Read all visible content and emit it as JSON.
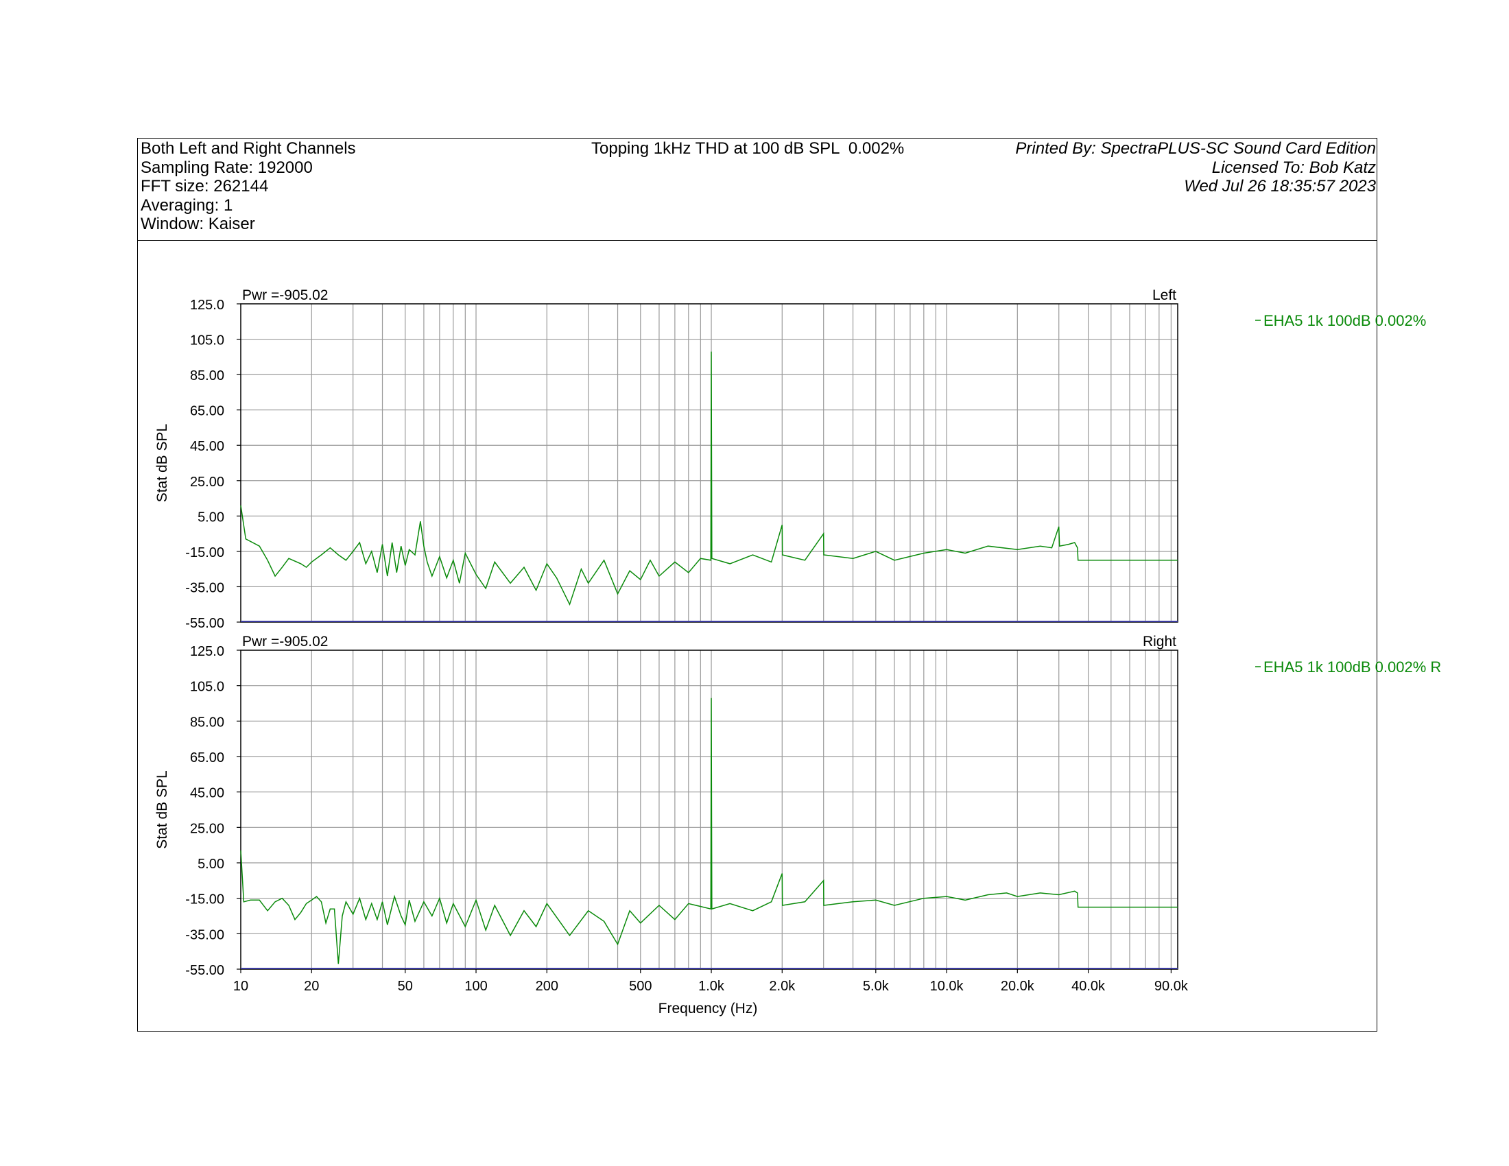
{
  "header": {
    "left_lines": [
      "Both Left and Right Channels",
      "Sampling Rate: 192000",
      "FFT size: 262144",
      "Averaging: 1",
      "Window: Kaiser"
    ],
    "center_title": "Topping 1kHz THD at 100 dB SPL  0.002%",
    "right_lines": [
      "Printed By: SpectraPLUS-SC Sound Card Edition",
      "Licensed To: Bob Katz",
      "Wed Jul 26 18:35:57 2023"
    ]
  },
  "colors": {
    "trace": "#0a8a0a",
    "grid": "#9a9a9a",
    "baseline": "#3a3aa0",
    "axis": "#000000"
  },
  "chart_data": [
    {
      "type": "line",
      "panel": "Left",
      "pwr_label": "Pwr =-905.02",
      "channel_label": "Left",
      "ylabel": "Stat dB SPL",
      "xlabel": "",
      "x_scale": "log",
      "xlim": [
        10,
        96000
      ],
      "ylim": [
        -55,
        125
      ],
      "y_ticks": [
        "125.0",
        "105.0",
        "85.00",
        "65.00",
        "45.00",
        "25.00",
        "5.00",
        "-15.00",
        "-35.00",
        "-55.00"
      ],
      "grid": true,
      "legend": {
        "position": "right",
        "entries": [
          "EHA5 1k 100dB 0.002%"
        ]
      },
      "series": [
        {
          "name": "EHA5 1k 100dB 0.002%",
          "points": [
            [
              10,
              11
            ],
            [
              10.5,
              -8
            ],
            [
              12,
              -12
            ],
            [
              13,
              -20
            ],
            [
              14,
              -29
            ],
            [
              15,
              -24
            ],
            [
              16,
              -19
            ],
            [
              18,
              -22
            ],
            [
              19,
              -24
            ],
            [
              20,
              -21
            ],
            [
              22,
              -17
            ],
            [
              24,
              -13
            ],
            [
              26,
              -17
            ],
            [
              28,
              -20
            ],
            [
              30,
              -15
            ],
            [
              32,
              -10
            ],
            [
              34,
              -22
            ],
            [
              36,
              -15
            ],
            [
              38,
              -27
            ],
            [
              40,
              -11
            ],
            [
              42,
              -29
            ],
            [
              44,
              -10
            ],
            [
              46,
              -27
            ],
            [
              48,
              -12
            ],
            [
              50,
              -23
            ],
            [
              52,
              -14
            ],
            [
              55,
              -17
            ],
            [
              58,
              2
            ],
            [
              60,
              -12
            ],
            [
              62,
              -21
            ],
            [
              65,
              -29
            ],
            [
              70,
              -18
            ],
            [
              75,
              -30
            ],
            [
              80,
              -20
            ],
            [
              85,
              -33
            ],
            [
              90,
              -16
            ],
            [
              100,
              -28
            ],
            [
              110,
              -36
            ],
            [
              120,
              -21
            ],
            [
              140,
              -33
            ],
            [
              160,
              -24
            ],
            [
              180,
              -37
            ],
            [
              200,
              -22
            ],
            [
              220,
              -30
            ],
            [
              250,
              -45
            ],
            [
              280,
              -25
            ],
            [
              300,
              -33
            ],
            [
              350,
              -20
            ],
            [
              400,
              -39
            ],
            [
              450,
              -26
            ],
            [
              500,
              -31
            ],
            [
              550,
              -20
            ],
            [
              600,
              -29
            ],
            [
              700,
              -21
            ],
            [
              800,
              -27
            ],
            [
              900,
              -19
            ],
            [
              995,
              -20
            ],
            [
              1000,
              98
            ],
            [
              1005,
              -19
            ],
            [
              1200,
              -22
            ],
            [
              1500,
              -17
            ],
            [
              1800,
              -21
            ],
            [
              2000,
              0
            ],
            [
              2005,
              -17
            ],
            [
              2500,
              -20
            ],
            [
              3000,
              -5
            ],
            [
              3005,
              -17
            ],
            [
              4000,
              -19
            ],
            [
              5000,
              -15
            ],
            [
              6000,
              -20
            ],
            [
              8000,
              -16
            ],
            [
              10000,
              -14
            ],
            [
              12000,
              -16
            ],
            [
              15000,
              -12
            ],
            [
              20000,
              -14
            ],
            [
              25000,
              -12
            ],
            [
              28000,
              -13
            ],
            [
              30000,
              -1
            ],
            [
              30200,
              -12
            ],
            [
              33000,
              -11
            ],
            [
              35000,
              -10
            ],
            [
              36000,
              -13
            ],
            [
              36200,
              -20
            ],
            [
              96000,
              -20
            ]
          ]
        }
      ]
    },
    {
      "type": "line",
      "panel": "Right",
      "pwr_label": "Pwr =-905.02",
      "channel_label": "Right",
      "ylabel": "Stat dB SPL",
      "xlabel": "Frequency (Hz)",
      "x_scale": "log",
      "xlim": [
        10,
        96000
      ],
      "ylim": [
        -55,
        125
      ],
      "y_ticks": [
        "125.0",
        "105.0",
        "85.00",
        "65.00",
        "45.00",
        "25.00",
        "5.00",
        "-15.00",
        "-35.00",
        "-55.00"
      ],
      "x_ticks": [
        {
          "value": 10,
          "label": "10"
        },
        {
          "value": 20,
          "label": "20"
        },
        {
          "value": 50,
          "label": "50"
        },
        {
          "value": 100,
          "label": "100"
        },
        {
          "value": 200,
          "label": "200"
        },
        {
          "value": 500,
          "label": "500"
        },
        {
          "value": 1000,
          "label": "1.0k"
        },
        {
          "value": 2000,
          "label": "2.0k"
        },
        {
          "value": 5000,
          "label": "5.0k"
        },
        {
          "value": 10000,
          "label": "10.0k"
        },
        {
          "value": 20000,
          "label": "20.0k"
        },
        {
          "value": 40000,
          "label": "40.0k"
        },
        {
          "value": 90000,
          "label": "90.0k"
        }
      ],
      "grid": true,
      "legend": {
        "position": "right",
        "entries": [
          "EHA5 1k 100dB 0.002% R"
        ]
      },
      "series": [
        {
          "name": "EHA5 1k 100dB 0.002% R",
          "points": [
            [
              10,
              12
            ],
            [
              10.3,
              -17
            ],
            [
              11,
              -16
            ],
            [
              12,
              -16
            ],
            [
              13,
              -22
            ],
            [
              14,
              -17
            ],
            [
              15,
              -15
            ],
            [
              16,
              -19
            ],
            [
              17,
              -27
            ],
            [
              18,
              -23
            ],
            [
              19,
              -18
            ],
            [
              20,
              -16
            ],
            [
              21,
              -14
            ],
            [
              22,
              -17
            ],
            [
              23,
              -29
            ],
            [
              24,
              -21
            ],
            [
              25,
              -21
            ],
            [
              26,
              -52
            ],
            [
              27,
              -25
            ],
            [
              28,
              -17
            ],
            [
              30,
              -24
            ],
            [
              32,
              -15
            ],
            [
              34,
              -27
            ],
            [
              36,
              -18
            ],
            [
              38,
              -27
            ],
            [
              40,
              -17
            ],
            [
              42,
              -30
            ],
            [
              45,
              -14
            ],
            [
              48,
              -25
            ],
            [
              50,
              -30
            ],
            [
              52,
              -16
            ],
            [
              55,
              -28
            ],
            [
              60,
              -17
            ],
            [
              65,
              -25
            ],
            [
              70,
              -15
            ],
            [
              75,
              -29
            ],
            [
              80,
              -18
            ],
            [
              90,
              -31
            ],
            [
              100,
              -16
            ],
            [
              110,
              -33
            ],
            [
              120,
              -19
            ],
            [
              140,
              -36
            ],
            [
              160,
              -22
            ],
            [
              180,
              -31
            ],
            [
              200,
              -18
            ],
            [
              250,
              -36
            ],
            [
              300,
              -22
            ],
            [
              350,
              -28
            ],
            [
              400,
              -41
            ],
            [
              450,
              -22
            ],
            [
              500,
              -29
            ],
            [
              600,
              -19
            ],
            [
              700,
              -27
            ],
            [
              800,
              -18
            ],
            [
              995,
              -21
            ],
            [
              1000,
              98
            ],
            [
              1005,
              -21
            ],
            [
              1200,
              -18
            ],
            [
              1500,
              -22
            ],
            [
              1800,
              -17
            ],
            [
              2000,
              -1
            ],
            [
              2005,
              -19
            ],
            [
              2500,
              -17
            ],
            [
              3000,
              -5
            ],
            [
              3005,
              -19
            ],
            [
              4000,
              -17
            ],
            [
              5000,
              -16
            ],
            [
              6000,
              -19
            ],
            [
              8000,
              -15
            ],
            [
              10000,
              -14
            ],
            [
              12000,
              -16
            ],
            [
              15000,
              -13
            ],
            [
              18000,
              -12
            ],
            [
              20000,
              -14
            ],
            [
              25000,
              -12
            ],
            [
              30000,
              -13
            ],
            [
              35000,
              -11
            ],
            [
              36000,
              -12
            ],
            [
              36200,
              -20
            ],
            [
              96000,
              -20
            ]
          ]
        }
      ]
    }
  ]
}
